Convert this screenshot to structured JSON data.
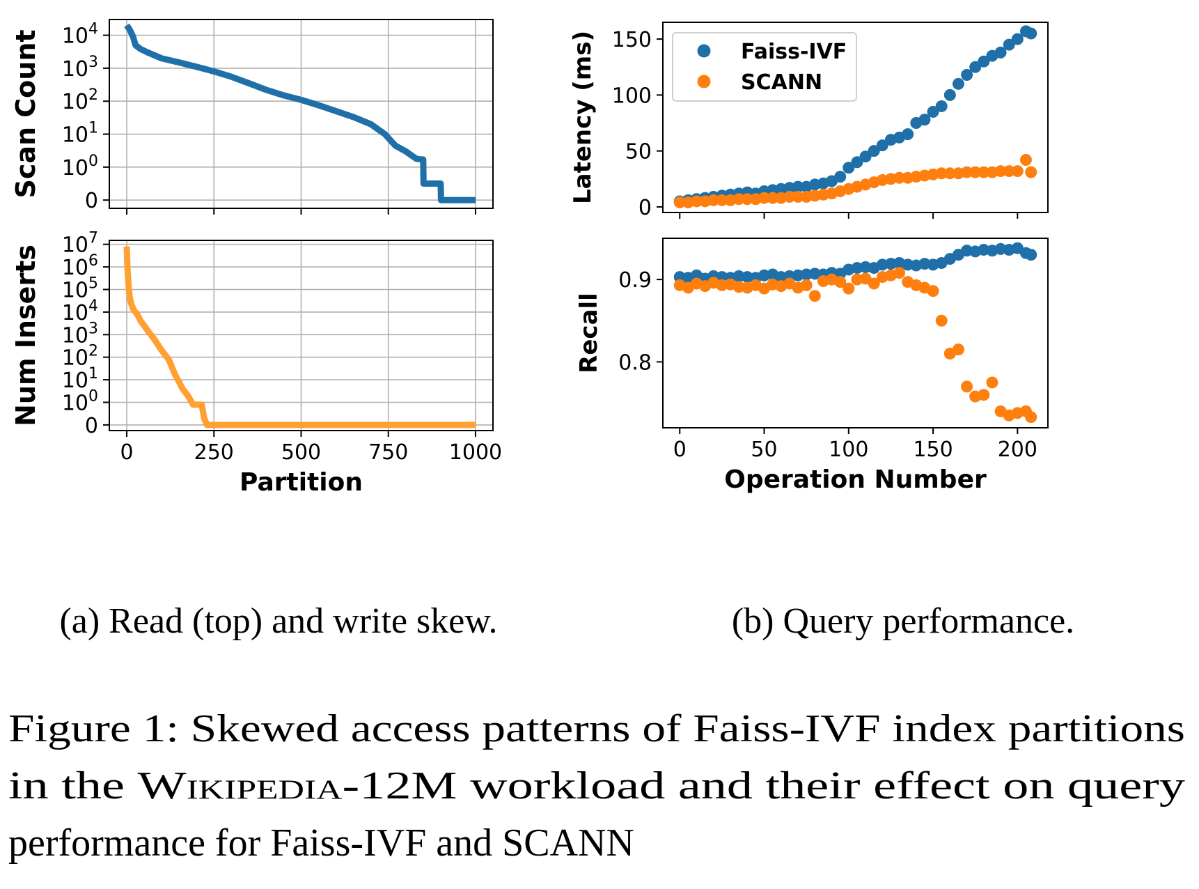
{
  "figure": {
    "subcaption_a": "(a) Read (top) and write skew.",
    "subcaption_b": "(b) Query performance.",
    "caption_prefix": "Figure 1: ",
    "caption_line1": "Skewed access patterns of Faiss-IVF index partitions",
    "caption_line2_a": "in the ",
    "caption_line2_b": "Wikipedia-12M",
    "caption_line2_c": " workload and their effect on query",
    "caption_line3": "performance for Faiss-IVF and SCANN"
  },
  "colors": {
    "blue": "#1f6fa8",
    "orange": "#ff7f0e",
    "orange_line": "#ffa032"
  },
  "chart_data": [
    {
      "id": "scan",
      "type": "line",
      "xlabel": "",
      "ylabel": "Scan Count",
      "yscale": "symlog",
      "xlim": [
        -50,
        1050
      ],
      "ylim": [
        -0.25,
        30000
      ],
      "x_ticks": [
        0,
        250,
        500,
        750,
        1000
      ],
      "x_tick_labels": [
        "",
        "",
        "",
        "",
        ""
      ],
      "y_ticks": [
        0,
        1,
        10,
        100,
        1000,
        10000
      ],
      "y_tick_labels": [
        "0",
        "10^0",
        "10^1",
        "10^2",
        "10^3",
        "10^4"
      ],
      "grid": true,
      "series": [
        {
          "color": "blue",
          "x": [
            0,
            8,
            18,
            25,
            40,
            60,
            100,
            150,
            200,
            250,
            300,
            350,
            400,
            450,
            500,
            550,
            600,
            650,
            700,
            740,
            770,
            800,
            830,
            845,
            850,
            851,
            900,
            901,
            1000
          ],
          "y": [
            20000,
            15000,
            9000,
            5000,
            3800,
            3000,
            2000,
            1500,
            1100,
            800,
            550,
            350,
            220,
            150,
            110,
            75,
            50,
            33,
            20,
            10,
            4.5,
            3,
            1.8,
            1.7,
            1.7,
            0.5,
            0.5,
            0,
            0
          ]
        }
      ]
    },
    {
      "id": "inserts",
      "type": "line",
      "xlabel": "Partition",
      "ylabel": "Num Inserts",
      "yscale": "symlog",
      "xlim": [
        -50,
        1050
      ],
      "ylim": [
        -0.25,
        15000000
      ],
      "x_ticks": [
        0,
        250,
        500,
        750,
        1000
      ],
      "x_tick_labels": [
        "0",
        "250",
        "500",
        "750",
        "1000"
      ],
      "y_ticks": [
        0,
        1,
        10,
        100,
        1000,
        10000,
        100000,
        1000000,
        10000000
      ],
      "y_tick_labels": [
        "0",
        "10^0",
        "10^1",
        "10^2",
        "10^3",
        "10^4",
        "10^5",
        "10^6",
        "10^7"
      ],
      "grid": true,
      "series": [
        {
          "color": "orange_line",
          "x": [
            0,
            2,
            4,
            6,
            8,
            12,
            20,
            30,
            40,
            50,
            60,
            80,
            100,
            120,
            140,
            150,
            160,
            175,
            185,
            190,
            215,
            222,
            230,
            1000
          ],
          "y": [
            8000000,
            1000000,
            300000,
            100000,
            50000,
            25000,
            12000,
            8000,
            4000,
            2500,
            1500,
            600,
            200,
            80,
            15,
            8,
            4,
            2,
            1.1,
            0.9,
            0.9,
            0.3,
            0,
            0
          ]
        }
      ]
    },
    {
      "id": "latency",
      "type": "scatter",
      "xlabel": "",
      "ylabel": "Latency (ms)",
      "xlim": [
        -10,
        218
      ],
      "ylim": [
        -5,
        165
      ],
      "x_ticks": [
        0,
        50,
        100,
        150,
        200
      ],
      "x_tick_labels": [
        "",
        "",
        "",
        "",
        ""
      ],
      "y_ticks": [
        0,
        50,
        100,
        150
      ],
      "y_tick_labels": [
        "0",
        "50",
        "100",
        "150"
      ],
      "grid": false,
      "legend": {
        "position": "upper-left",
        "entries": [
          "Faiss-IVF",
          "SCANN"
        ]
      },
      "series": [
        {
          "name": "Faiss-IVF",
          "color": "blue",
          "x": [
            0,
            5,
            10,
            15,
            20,
            25,
            30,
            35,
            40,
            45,
            50,
            55,
            60,
            65,
            70,
            75,
            80,
            85,
            90,
            95,
            100,
            105,
            110,
            115,
            120,
            125,
            130,
            135,
            140,
            145,
            150,
            155,
            160,
            165,
            170,
            175,
            180,
            185,
            190,
            195,
            200,
            205,
            208
          ],
          "y": [
            5,
            6,
            7,
            8,
            9,
            10,
            11,
            12,
            13,
            12,
            14,
            15,
            16,
            17,
            18,
            18,
            20,
            21,
            23,
            27,
            35,
            40,
            45,
            50,
            55,
            60,
            62,
            65,
            75,
            78,
            85,
            90,
            100,
            110,
            118,
            125,
            130,
            135,
            138,
            145,
            150,
            157,
            155
          ]
        },
        {
          "name": "SCANN",
          "color": "orange",
          "x": [
            0,
            5,
            10,
            15,
            20,
            25,
            30,
            35,
            40,
            45,
            50,
            55,
            60,
            65,
            70,
            75,
            80,
            85,
            90,
            95,
            100,
            105,
            110,
            115,
            120,
            125,
            130,
            135,
            140,
            145,
            150,
            155,
            160,
            165,
            170,
            175,
            180,
            185,
            190,
            195,
            200,
            205,
            208
          ],
          "y": [
            4,
            4,
            5,
            5,
            6,
            6,
            6,
            7,
            7,
            7,
            8,
            8,
            8,
            9,
            9,
            9,
            10,
            11,
            12,
            14,
            16,
            18,
            20,
            22,
            24,
            25,
            26,
            26,
            27,
            28,
            29,
            30,
            30,
            30,
            31,
            31,
            31,
            31,
            32,
            32,
            32,
            42,
            31
          ]
        }
      ]
    },
    {
      "id": "recall",
      "type": "scatter",
      "xlabel": "Operation Number",
      "ylabel": "Recall",
      "xlim": [
        -10,
        218
      ],
      "ylim": [
        0.72,
        0.95
      ],
      "x_ticks": [
        0,
        50,
        100,
        150,
        200
      ],
      "x_tick_labels": [
        "0",
        "50",
        "100",
        "150",
        "200"
      ],
      "y_ticks": [
        0.8,
        0.9
      ],
      "y_tick_labels": [
        "0.8",
        "0.9"
      ],
      "grid": false,
      "series": [
        {
          "name": "Faiss-IVF",
          "color": "blue",
          "x": [
            0,
            5,
            10,
            15,
            20,
            25,
            30,
            35,
            40,
            45,
            50,
            55,
            60,
            65,
            70,
            75,
            80,
            85,
            90,
            95,
            100,
            105,
            110,
            115,
            120,
            125,
            130,
            135,
            140,
            145,
            150,
            155,
            160,
            165,
            170,
            175,
            180,
            185,
            190,
            195,
            200,
            205,
            208
          ],
          "y": [
            0.903,
            0.902,
            0.905,
            0.901,
            0.904,
            0.903,
            0.902,
            0.904,
            0.903,
            0.902,
            0.905,
            0.906,
            0.903,
            0.904,
            0.905,
            0.906,
            0.907,
            0.906,
            0.908,
            0.907,
            0.912,
            0.914,
            0.915,
            0.914,
            0.918,
            0.919,
            0.92,
            0.918,
            0.917,
            0.919,
            0.918,
            0.92,
            0.925,
            0.93,
            0.935,
            0.934,
            0.936,
            0.935,
            0.937,
            0.936,
            0.938,
            0.932,
            0.93
          ]
        },
        {
          "name": "SCANN",
          "color": "orange",
          "x": [
            0,
            5,
            10,
            15,
            20,
            25,
            30,
            35,
            40,
            45,
            50,
            55,
            60,
            65,
            70,
            75,
            80,
            85,
            90,
            95,
            100,
            105,
            110,
            115,
            120,
            125,
            130,
            135,
            140,
            145,
            150,
            155,
            160,
            165,
            170,
            175,
            180,
            185,
            190,
            195,
            200,
            205,
            208
          ],
          "y": [
            0.893,
            0.89,
            0.895,
            0.892,
            0.896,
            0.893,
            0.894,
            0.891,
            0.89,
            0.893,
            0.889,
            0.894,
            0.892,
            0.895,
            0.89,
            0.893,
            0.88,
            0.898,
            0.9,
            0.897,
            0.889,
            0.9,
            0.901,
            0.895,
            0.903,
            0.905,
            0.908,
            0.897,
            0.893,
            0.89,
            0.886,
            0.85,
            0.81,
            0.815,
            0.77,
            0.758,
            0.76,
            0.775,
            0.74,
            0.735,
            0.738,
            0.74,
            0.733
          ]
        }
      ]
    }
  ]
}
